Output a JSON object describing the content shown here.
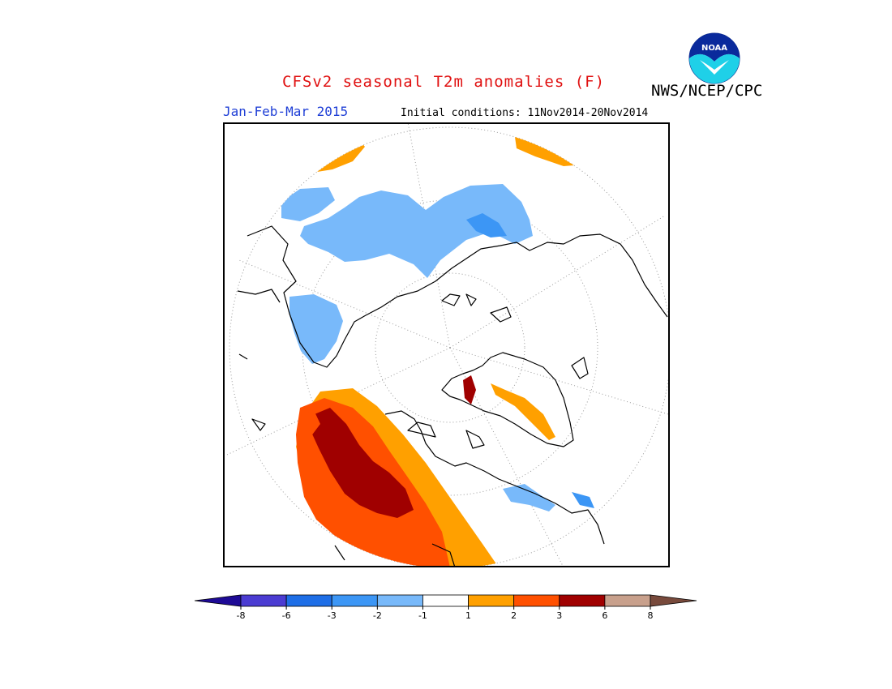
{
  "title": "CFSv2 seasonal T2m anomalies (F)",
  "agency": "NWS/NCEP/CPC",
  "season": "Jan-Feb-Mar 2015",
  "initial_conditions": "Initial conditions: 11Nov2014-20Nov2014",
  "logo": {
    "text": "NOAA",
    "icon": "noaa-logo-icon"
  },
  "projection": "north-polar-stereographic",
  "colorbar": {
    "ticks": [
      "-8",
      "-6",
      "-3",
      "-2",
      "-1",
      "1",
      "2",
      "3",
      "6",
      "8"
    ],
    "low_extend_color": "#1e0a96",
    "high_extend_color": "#784a3c",
    "colors": [
      "#4b3cd2",
      "#1e6ee6",
      "#3c96f5",
      "#78b9fa",
      "#ffffff",
      "#ffa000",
      "#ff5000",
      "#a00000",
      "#c8a08c"
    ]
  },
  "colors": {
    "cool_light": "#78b9fa",
    "cool_mid": "#3c96f5",
    "warm_1": "#ffa000",
    "warm_2": "#ff5000",
    "warm_3": "#a00000",
    "warm_4": "#c8a08c",
    "title": "#e01010",
    "season": "#1f3fd6"
  }
}
